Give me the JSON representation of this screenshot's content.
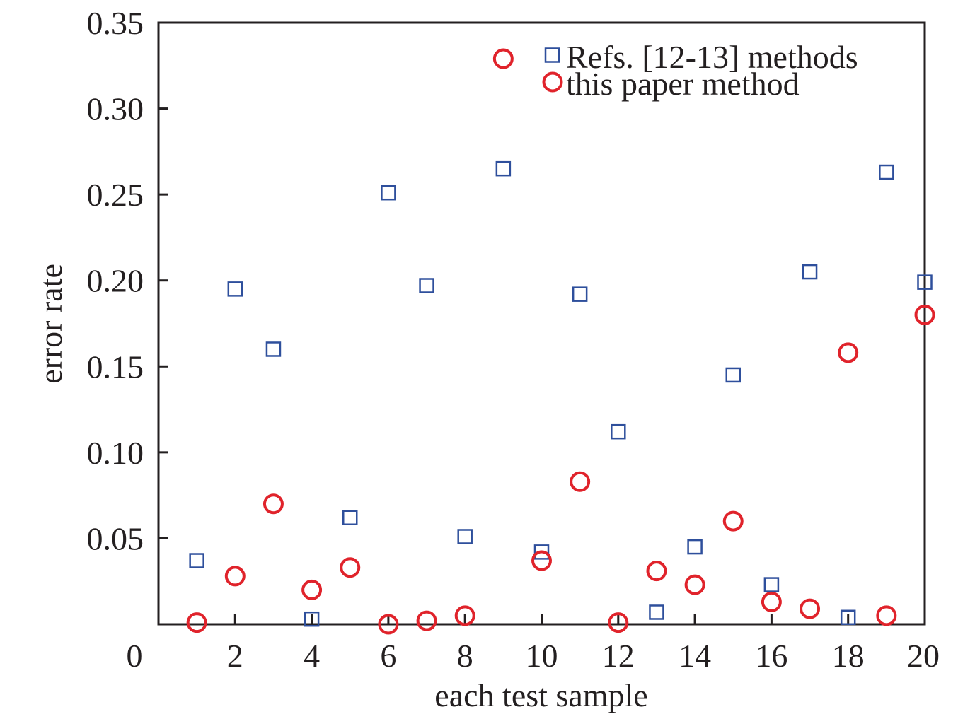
{
  "chart_data": {
    "type": "scatter",
    "title": "",
    "xlabel": "each test sample",
    "ylabel": "error rate",
    "xlim": [
      0,
      20
    ],
    "ylim": [
      0,
      0.35
    ],
    "x_ticks": [
      "0",
      "2",
      "4",
      "6",
      "8",
      "10",
      "12",
      "14",
      "16",
      "18",
      "20"
    ],
    "y_ticks": [
      "0.05",
      "0.10",
      "0.15",
      "0.20",
      "0.25",
      "0.30",
      "0.35"
    ],
    "grid": false,
    "legend_position": "top-right",
    "series": [
      {
        "name": "Refs. [12-13] methods",
        "marker": "square",
        "color": "#2e4f9c",
        "x": [
          1,
          2,
          3,
          4,
          5,
          6,
          7,
          8,
          9,
          10,
          11,
          12,
          13,
          14,
          15,
          16,
          17,
          18,
          19,
          20
        ],
        "y": [
          0.037,
          0.195,
          0.16,
          0.003,
          0.062,
          0.251,
          0.197,
          0.051,
          0.265,
          0.042,
          0.192,
          0.112,
          0.007,
          0.045,
          0.145,
          0.023,
          0.205,
          0.004,
          0.263,
          0.199
        ]
      },
      {
        "name": "this paper method",
        "marker": "circle",
        "color": "#e0232b",
        "x": [
          1,
          2,
          3,
          4,
          5,
          6,
          7,
          8,
          9,
          10,
          11,
          12,
          13,
          14,
          15,
          16,
          17,
          18,
          19,
          20
        ],
        "y": [
          0.001,
          0.028,
          0.07,
          0.02,
          0.033,
          0.0,
          0.002,
          0.005,
          0.329,
          0.037,
          0.083,
          0.001,
          0.031,
          0.023,
          0.06,
          0.013,
          0.009,
          0.158,
          0.005,
          0.18
        ]
      }
    ]
  }
}
